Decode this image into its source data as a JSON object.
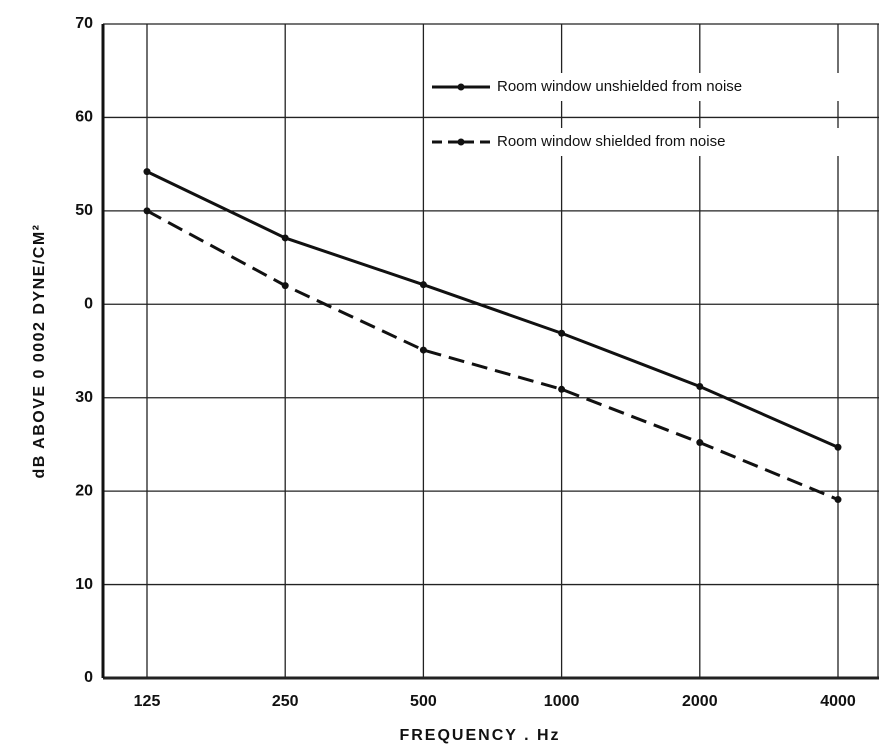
{
  "chart_data": {
    "type": "line",
    "x_label": "FREQUENCY . Hz",
    "y_label": "dB ABOVE 0 0002 DYNE/CM²",
    "categories": [
      "125",
      "250",
      "500",
      "1000",
      "2000",
      "4000"
    ],
    "series": [
      {
        "name": "Room window unshielded from noise",
        "color": "#111111",
        "dash": "solid",
        "values": [
          54.2,
          47.1,
          42.1,
          36.9,
          31.2,
          24.7
        ]
      },
      {
        "name": "Room window shielded from noise",
        "color": "#111111",
        "dash": "dashed",
        "values": [
          50,
          42,
          35.1,
          30.9,
          25.2,
          19.1
        ]
      }
    ],
    "ylim": [
      0,
      70
    ],
    "yticks": [
      0,
      10,
      20,
      30,
      {
        "value": 40,
        "label": "0"
      },
      50,
      60,
      70
    ],
    "grid": true,
    "legend": "upper right"
  }
}
